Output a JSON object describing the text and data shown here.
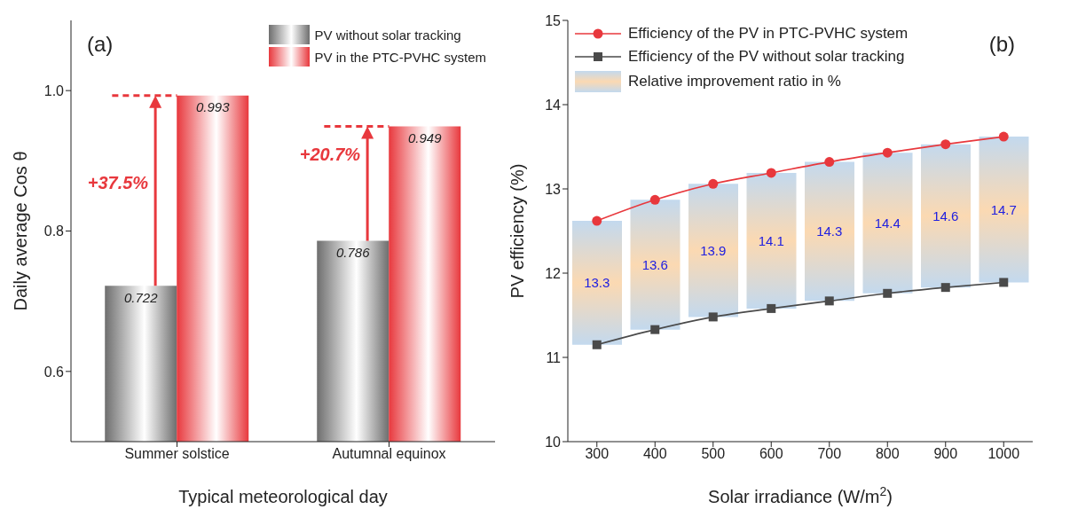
{
  "chart_data": [
    {
      "type": "bar",
      "categories": [
        "Summer solstice",
        "Autumnal equinox"
      ],
      "series": [
        {
          "name": "PV without solar tracking",
          "color": "#6e6e6e",
          "values": [
            0.722,
            0.786
          ]
        },
        {
          "name": "PV in the PTC-PVHC system",
          "color": "#e8383d",
          "values": [
            0.993,
            0.949
          ]
        }
      ],
      "data_labels": true,
      "legend": "top right",
      "xlabel": "Typical meteorological day",
      "ylabel": "Daily average Cos θ",
      "ylim": [
        0.5,
        1.1
      ],
      "yticks": [
        0.6,
        0.8,
        {
          "value": 1,
          "label": "1.0"
        }
      ],
      "ref_lines": [
        {
          "axis": "y",
          "value": 0.993,
          "color": "#e8383d",
          "line_style": "dashed"
        },
        {
          "axis": "y",
          "value": 0.949,
          "color": "#e8383d",
          "line_style": "dashed"
        }
      ],
      "annotations": [
        "(a)",
        {
          "text": "+37.5%",
          "x": "Summer solstice",
          "y": 0.86
        },
        {
          "text": "+20.7%",
          "x": "Autumnal equinox",
          "y": 0.9
        }
      ]
    },
    {
      "type": "line",
      "x": [
        300,
        400,
        500,
        600,
        700,
        800,
        900,
        1000
      ],
      "series": [
        {
          "name": "Efficiency of the PV in PTC-PVHC system",
          "color": "#e8383d",
          "marker": "circle",
          "values": [
            12.62,
            12.87,
            13.06,
            13.19,
            13.32,
            13.43,
            13.53,
            13.62
          ]
        },
        {
          "name": "Efficiency of the PV without solar tracking",
          "color": "#4a4a4a",
          "marker": "square",
          "values": [
            11.15,
            11.33,
            11.48,
            11.58,
            11.67,
            11.76,
            11.83,
            11.89
          ]
        },
        {
          "type": "bar",
          "name": "Relative improvement ratio in %",
          "color": "#fbd9b2",
          "base": [
            11.15,
            11.33,
            11.48,
            11.58,
            11.67,
            11.76,
            11.83,
            11.89
          ],
          "values": [
            1.47,
            1.54,
            1.58,
            1.61,
            1.65,
            1.67,
            1.7,
            1.73
          ]
        }
      ],
      "legend": "top left",
      "xlabel": "Solar irradiance (W/m$^{2}$)",
      "ylabel": "PV efficiency (%)",
      "xlim": [
        250,
        1050
      ],
      "xticks": [
        300,
        400,
        500,
        600,
        700,
        800,
        900,
        1000
      ],
      "ylim": [
        10,
        15
      ],
      "yticks": [
        10,
        11,
        12,
        13,
        14,
        15
      ],
      "annotations": [
        "(b)",
        "13.3",
        "13.6",
        "13.9",
        "14.1",
        "14.3",
        "14.4",
        "14.6",
        "14.7"
      ]
    }
  ]
}
